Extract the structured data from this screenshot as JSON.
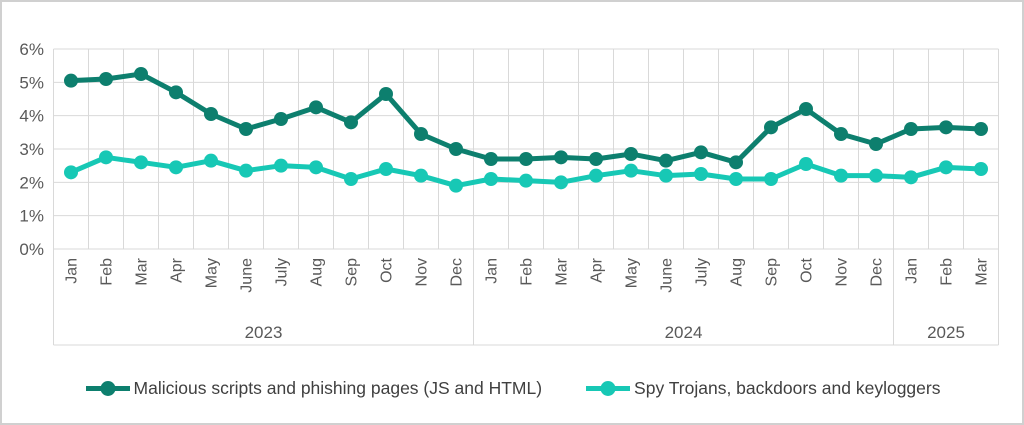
{
  "window": {
    "background": "#ffffff",
    "border_color": "#d0d0d0"
  },
  "chart_data": {
    "type": "line",
    "title": "",
    "xlabel": "",
    "ylabel": "",
    "ylim": [
      0,
      6
    ],
    "yticks": [
      0,
      1,
      2,
      3,
      4,
      5,
      6
    ],
    "ytick_labels": [
      "0%",
      "1%",
      "2%",
      "3%",
      "4%",
      "5%",
      "6%"
    ],
    "grid": true,
    "legend_position": "bottom-center",
    "year_groups": [
      {
        "label": "2023",
        "months": [
          "Jan",
          "Feb",
          "Mar",
          "Apr",
          "May",
          "June",
          "July",
          "Aug",
          "Sep",
          "Oct",
          "Nov",
          "Dec"
        ]
      },
      {
        "label": "2024",
        "months": [
          "Jan",
          "Feb",
          "Mar",
          "Apr",
          "May",
          "June",
          "July",
          "Aug",
          "Sep",
          "Oct",
          "Nov",
          "Dec"
        ]
      },
      {
        "label": "2025",
        "months": [
          "Jan",
          "Feb",
          "Mar"
        ]
      }
    ],
    "series": [
      {
        "name": "Malicious scripts and phishing pages (JS and HTML)",
        "color": "#0d7f6e",
        "marker": "circle",
        "values": [
          5.05,
          5.1,
          5.25,
          4.7,
          4.05,
          3.6,
          3.9,
          4.25,
          3.8,
          4.65,
          3.45,
          3.0,
          2.7,
          2.7,
          2.75,
          2.7,
          2.85,
          2.65,
          2.9,
          2.6,
          3.65,
          4.2,
          3.45,
          3.15,
          3.6,
          3.65,
          3.6
        ]
      },
      {
        "name": "Spy Trojans, backdoors and keyloggers",
        "color": "#17c8b5",
        "marker": "circle",
        "values": [
          2.3,
          2.75,
          2.6,
          2.45,
          2.65,
          2.35,
          2.5,
          2.45,
          2.1,
          2.4,
          2.2,
          1.9,
          2.1,
          2.05,
          2.0,
          2.2,
          2.35,
          2.2,
          2.25,
          2.1,
          2.1,
          2.55,
          2.2,
          2.2,
          2.15,
          2.45,
          2.4
        ]
      }
    ],
    "colors": {
      "gridline": "#d9d9d9",
      "axis_text": "#595959",
      "legend_text": "#404040"
    }
  }
}
